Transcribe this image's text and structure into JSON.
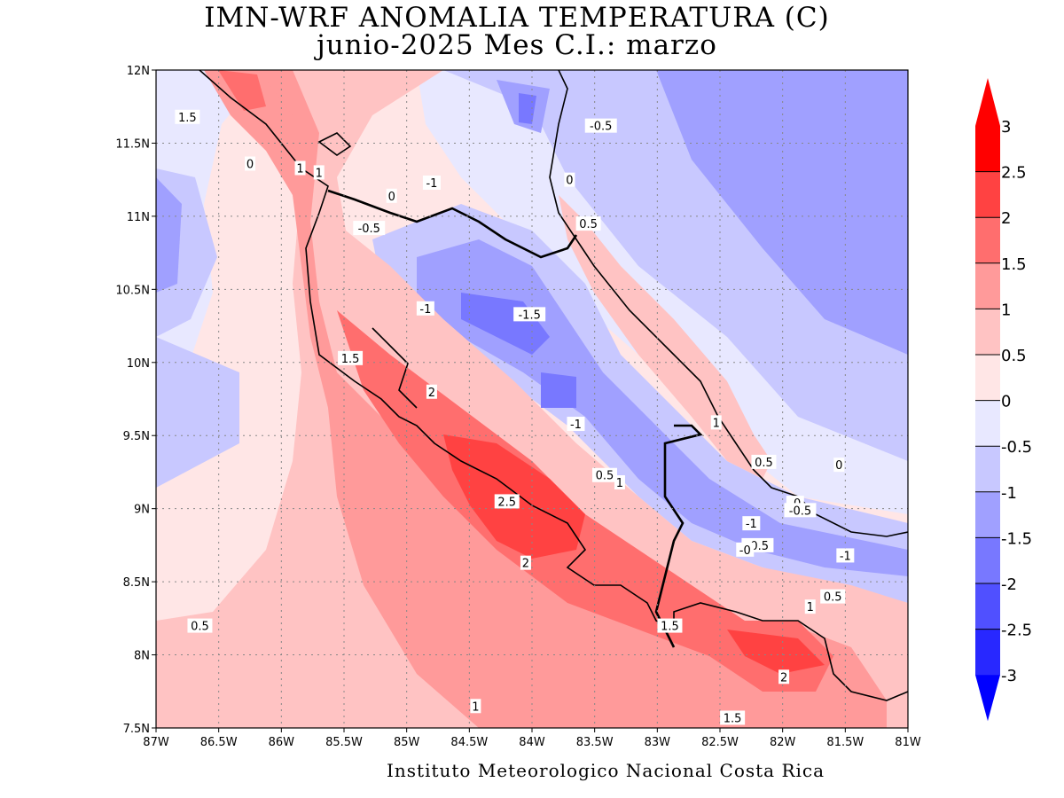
{
  "title": {
    "line1": "IMN-WRF  ANOMALIA TEMPERATURA (C)",
    "line2": "junio-2025 Mes C.I.: marzo"
  },
  "credit": "Instituto Meteorologico Nacional Costa Rica",
  "map": {
    "lon_range": [
      -87,
      -81
    ],
    "lat_range": [
      7.5,
      12
    ],
    "x_ticks": [
      "87W",
      "86.5W",
      "86W",
      "85.5W",
      "85W",
      "84.5W",
      "84W",
      "83.5W",
      "83W",
      "82.5W",
      "82W",
      "81.5W",
      "81W"
    ],
    "y_ticks": [
      "7.5N",
      "8N",
      "8.5N",
      "9N",
      "9.5N",
      "10N",
      "10.5N",
      "11N",
      "11.5N",
      "12N"
    ],
    "grid": "dotted"
  },
  "colorbar": {
    "levels": [
      "3",
      "2.5",
      "2",
      "1.5",
      "1",
      "0.5",
      "0",
      "-0.5",
      "-1",
      "-1.5",
      "-2",
      "-2.5",
      "-3"
    ],
    "colors": [
      "#ff0000",
      "#ff4242",
      "#ff6e6e",
      "#ff9a9a",
      "#ffc3c3",
      "#ffe6e6",
      "#e8e8ff",
      "#c8c8ff",
      "#a0a0ff",
      "#7878ff",
      "#5050ff",
      "#2828ff"
    ],
    "extend_top": "#ff0000",
    "extend_bottom": "#0000ff"
  },
  "contour_labels": [
    {
      "text": "1.5",
      "lon": -86.75,
      "lat": 11.68
    },
    {
      "text": "0",
      "lon": -86.25,
      "lat": 11.36
    },
    {
      "text": "1",
      "lon": -85.85,
      "lat": 11.33
    },
    {
      "text": "1",
      "lon": -85.7,
      "lat": 11.3
    },
    {
      "text": "0",
      "lon": -85.12,
      "lat": 11.14
    },
    {
      "text": "-1",
      "lon": -84.8,
      "lat": 11.23
    },
    {
      "text": "-0.5",
      "lon": -83.45,
      "lat": 11.62
    },
    {
      "text": "0",
      "lon": -83.7,
      "lat": 11.25
    },
    {
      "text": "-0.5",
      "lon": -85.3,
      "lat": 10.92
    },
    {
      "text": "0.5",
      "lon": -83.55,
      "lat": 10.95
    },
    {
      "text": "-1",
      "lon": -84.85,
      "lat": 10.37
    },
    {
      "text": "-1.5",
      "lon": -84.02,
      "lat": 10.33
    },
    {
      "text": "1.5",
      "lon": -85.45,
      "lat": 10.03
    },
    {
      "text": "2",
      "lon": -84.8,
      "lat": 9.8
    },
    {
      "text": "-1",
      "lon": -83.65,
      "lat": 9.58
    },
    {
      "text": "1",
      "lon": -82.53,
      "lat": 9.59
    },
    {
      "text": "0.5",
      "lon": -82.15,
      "lat": 9.32
    },
    {
      "text": "0",
      "lon": -81.55,
      "lat": 9.3
    },
    {
      "text": "0.5",
      "lon": -83.42,
      "lat": 9.23
    },
    {
      "text": "1",
      "lon": -83.3,
      "lat": 9.18
    },
    {
      "text": "2.5",
      "lon": -84.2,
      "lat": 9.05
    },
    {
      "text": "-0",
      "lon": -81.9,
      "lat": 9.04
    },
    {
      "text": "-0.5",
      "lon": -81.86,
      "lat": 8.99
    },
    {
      "text": "-1",
      "lon": -82.25,
      "lat": 8.9
    },
    {
      "text": "-0.5",
      "lon": -82.2,
      "lat": 8.75
    },
    {
      "text": "-0",
      "lon": -82.3,
      "lat": 8.72
    },
    {
      "text": "-1",
      "lon": -81.5,
      "lat": 8.68
    },
    {
      "text": "2",
      "lon": -84.05,
      "lat": 8.63
    },
    {
      "text": "0.5",
      "lon": -81.6,
      "lat": 8.4
    },
    {
      "text": "1",
      "lon": -81.78,
      "lat": 8.33
    },
    {
      "text": "1.5",
      "lon": -82.9,
      "lat": 8.2
    },
    {
      "text": "0.5",
      "lon": -86.65,
      "lat": 8.2
    },
    {
      "text": "2",
      "lon": -81.99,
      "lat": 7.85
    },
    {
      "text": "1",
      "lon": -84.45,
      "lat": 7.65
    },
    {
      "text": "1.5",
      "lon": -82.4,
      "lat": 7.57
    }
  ]
}
